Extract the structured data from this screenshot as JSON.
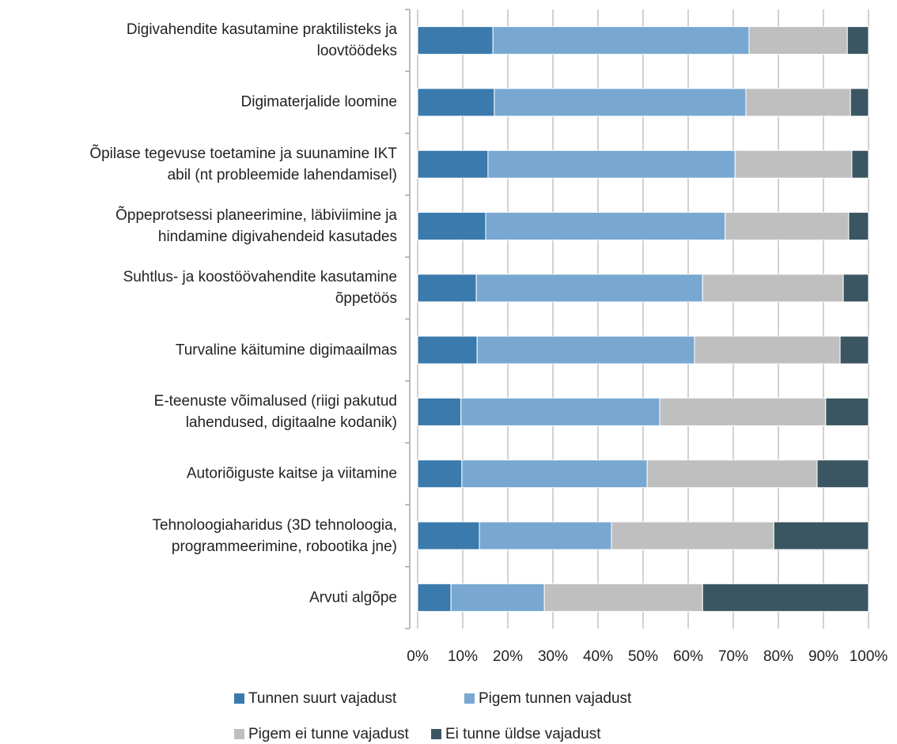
{
  "chart_data": {
    "type": "stacked_bar_horizontal",
    "categories": [
      "Digivahendite kasutamine praktilisteks ja\nloovtöödeks",
      "Digimaterjalide loomine",
      "Õpilase tegevuse toetamine ja suunamine IKT\nabil (nt probleemide lahendamisel)",
      "Õppeprotsessi planeerimine, läbiviimine ja\nhindamine digivahendeid kasutades",
      "Suhtlus- ja koostöövahendite kasutamine\nõppetöös",
      "Turvaline käitumine digimaailmas",
      "E-teenuste võimalused (riigi pakutud\nlahendused, digitaalne kodanik)",
      "Autoriõiguste kaitse ja viitamine",
      "Tehnoloogiaharidus (3D tehnoloogia,\nprogrammeerimine, robootika jne)",
      "Arvuti algõpe"
    ],
    "series": [
      {
        "name": "Tunnen suurt vajadust",
        "color": "#3a7aad",
        "values": [
          16.7,
          17.0,
          15.6,
          15.1,
          13.0,
          13.2,
          9.6,
          9.8,
          13.7,
          7.4
        ]
      },
      {
        "name": "Pigem tunnen vajadust",
        "color": "#78a8d1",
        "values": [
          56.8,
          55.8,
          54.8,
          53.1,
          50.2,
          48.2,
          44.1,
          41.1,
          29.3,
          20.7
        ]
      },
      {
        "name": "Pigem ei tunne vajadust",
        "color": "#bfbfbf",
        "values": [
          21.8,
          23.2,
          25.9,
          27.4,
          31.2,
          32.3,
          36.8,
          37.7,
          36.0,
          35.1
        ]
      },
      {
        "name": "Ei tunne üldse vajadust",
        "color": "#3b5663",
        "values": [
          4.7,
          4.0,
          3.7,
          4.4,
          5.6,
          6.3,
          9.5,
          11.4,
          21.0,
          36.8
        ]
      }
    ],
    "xlim": [
      0,
      100
    ],
    "xticks": [
      {
        "value": 0,
        "label": "0%"
      },
      {
        "value": 10,
        "label": "10%"
      },
      {
        "value": 20,
        "label": "20%"
      },
      {
        "value": 30,
        "label": "30%"
      },
      {
        "value": 40,
        "label": "40%"
      },
      {
        "value": 50,
        "label": "50%"
      },
      {
        "value": 60,
        "label": "60%"
      },
      {
        "value": 70,
        "label": "70%"
      },
      {
        "value": 80,
        "label": "80%"
      },
      {
        "value": 90,
        "label": "90%"
      },
      {
        "value": 100,
        "label": "100%"
      }
    ],
    "grid": true,
    "legend": "bottom"
  }
}
